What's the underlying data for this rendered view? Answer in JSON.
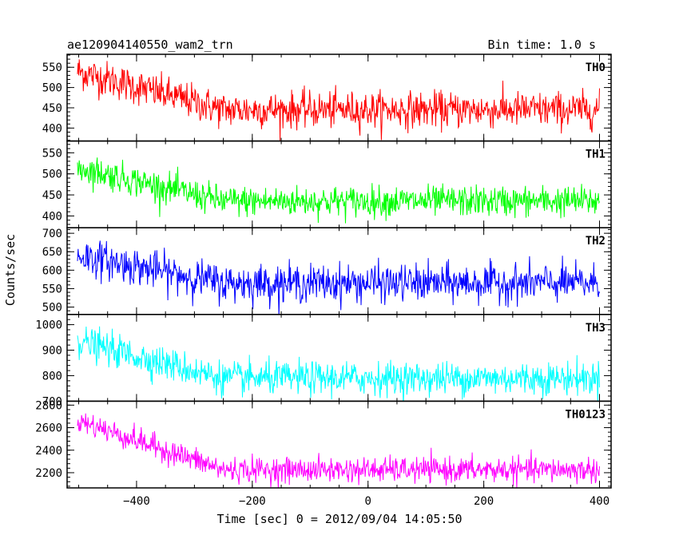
{
  "title_left": "ae120904140550_wam2_trn",
  "title_right": "Bin time: 1.0 s",
  "chart_data": {
    "type": "line",
    "title": "ae120904140550_wam2_trn",
    "subtitle": "Bin time: 1.0 s",
    "xlabel": "Time [sec] 0 = 2012/09/04 14:05:50",
    "ylabel": "Counts/sec",
    "xlim": [
      -520,
      420
    ],
    "x_ticks": [
      -400,
      -200,
      0,
      200,
      400
    ],
    "grid": false,
    "legend": "none",
    "panels": [
      {
        "name": "TH0",
        "color": "#ff0000",
        "ylim": [
          368,
          582
        ],
        "y_ticks": [
          400,
          450,
          500,
          550
        ],
        "trend": {
          "start": 540,
          "plateau": 445,
          "transition_end": -250
        },
        "noise_sd": 22
      },
      {
        "name": "TH1",
        "color": "#00ff00",
        "ylim": [
          372,
          578
        ],
        "y_ticks": [
          400,
          450,
          500,
          550
        ],
        "trend": {
          "start": 515,
          "plateau": 435,
          "transition_end": -250
        },
        "noise_sd": 18
      },
      {
        "name": "TH2",
        "color": "#0000ff",
        "ylim": [
          480,
          715
        ],
        "y_ticks": [
          500,
          550,
          600,
          650,
          700
        ],
        "trend": {
          "start": 640,
          "plateau": 565,
          "transition_end": -250
        },
        "noise_sd": 25
      },
      {
        "name": "TH3",
        "color": "#00ffff",
        "ylim": [
          700,
          1040
        ],
        "y_ticks": [
          700,
          800,
          900,
          1000
        ],
        "trend": {
          "start": 935,
          "plateau": 790,
          "transition_end": -250
        },
        "noise_sd": 32
      },
      {
        "name": "TH0123",
        "color": "#ff00ff",
        "ylim": [
          2065,
          2835
        ],
        "y_ticks": [
          2200,
          2400,
          2600,
          2800
        ],
        "trend": {
          "start": 2665,
          "plateau": 2225,
          "transition_end": -250
        },
        "noise_sd": 55
      }
    ],
    "series_x": {
      "start": -502,
      "end": 400,
      "step": 1
    }
  }
}
